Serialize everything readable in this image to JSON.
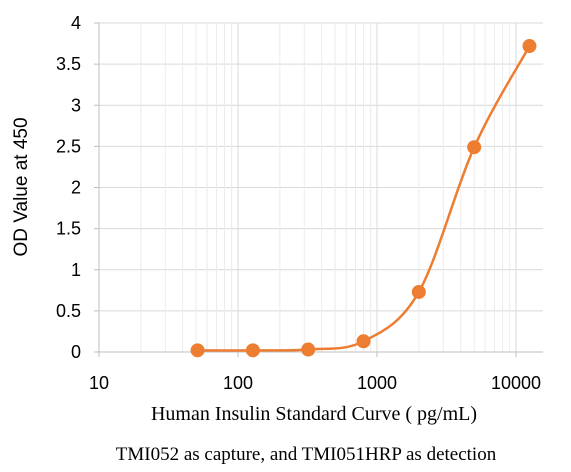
{
  "chart_data": {
    "type": "scatter",
    "x_scale": "log",
    "xlim": [
      10,
      15000
    ],
    "ylim": [
      0,
      4
    ],
    "x_ticks": [
      "10",
      "100",
      "1000",
      "10000"
    ],
    "y_ticks": [
      "0",
      "0.5",
      "1",
      "1.5",
      "2",
      "2.5",
      "3",
      "3.5",
      "4"
    ],
    "ylabel": "OD Value at 450",
    "xlabel": "Human Insulin Standard Curve ( pg/mL)",
    "caption": "TMI052 as capture, and TMI051HRP as detection",
    "grid": true,
    "legend": "none",
    "series": [
      {
        "color": "#ED7D31",
        "smooth_line": true,
        "points": [
          {
            "x": 51.2,
            "y": 0.02
          },
          {
            "x": 128,
            "y": 0.02
          },
          {
            "x": 320,
            "y": 0.03
          },
          {
            "x": 800,
            "y": 0.13
          },
          {
            "x": 2000,
            "y": 0.73
          },
          {
            "x": 5000,
            "y": 2.49
          },
          {
            "x": 12500,
            "y": 3.72
          }
        ]
      }
    ]
  }
}
